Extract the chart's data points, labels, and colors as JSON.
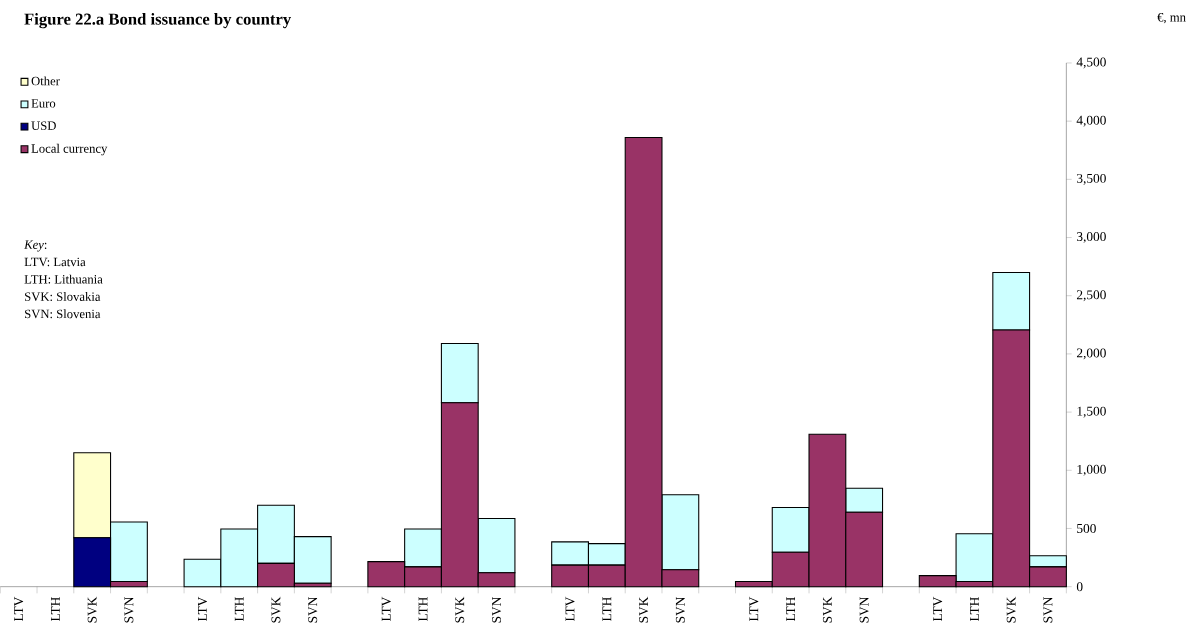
{
  "chart_data": {
    "type": "bar",
    "stacked": true,
    "title": "Figure 22.a  Bond issuance by country",
    "ylabel": "€, mn",
    "categories": [
      "LTV",
      "LTH",
      "SVK",
      "SVN",
      null,
      "LTV",
      "LTH",
      "SVK",
      "SVN",
      null,
      "LTV",
      "LTH",
      "SVK",
      "SVN",
      null,
      "LTV",
      "LTH",
      "SVK",
      "SVN",
      null,
      "LTV",
      "LTH",
      "SVK",
      "SVN",
      null,
      "LTV",
      "LTH",
      "SVK",
      "SVN"
    ],
    "series": [
      {
        "name": "Local currency",
        "color": "#993366",
        "values": [
          0,
          0,
          0,
          45,
          null,
          0,
          0,
          200,
          30,
          null,
          215,
          170,
          1580,
          120,
          null,
          185,
          185,
          3860,
          145,
          null,
          45,
          295,
          1310,
          640,
          null,
          95,
          45,
          2205,
          170
        ]
      },
      {
        "name": "USD",
        "color": "#000080",
        "values": [
          0,
          0,
          420,
          0,
          null,
          0,
          0,
          0,
          0,
          null,
          0,
          0,
          0,
          0,
          null,
          0,
          0,
          0,
          0,
          null,
          0,
          0,
          0,
          0,
          null,
          0,
          0,
          0,
          0
        ]
      },
      {
        "name": "Euro",
        "color": "#ccffff",
        "values": [
          0,
          0,
          0,
          510,
          null,
          235,
          495,
          500,
          400,
          null,
          0,
          325,
          510,
          465,
          null,
          200,
          185,
          0,
          645,
          null,
          0,
          385,
          0,
          205,
          null,
          0,
          410,
          495,
          95
        ]
      },
      {
        "name": "Other",
        "color": "#ffffcc",
        "values": [
          0,
          0,
          730,
          0,
          null,
          0,
          0,
          0,
          0,
          null,
          0,
          0,
          0,
          0,
          null,
          0,
          0,
          0,
          0,
          null,
          0,
          0,
          0,
          0,
          null,
          0,
          0,
          0,
          0
        ]
      }
    ],
    "ylim": [
      0,
      4500
    ],
    "yticks": [
      0,
      500,
      {
        "value": 1000,
        "label": "1,000"
      },
      {
        "value": 1500,
        "label": "1,500"
      },
      {
        "value": 2000,
        "label": "2,000"
      },
      {
        "value": 2500,
        "label": "2,500"
      },
      {
        "value": 3000,
        "label": "3,000"
      },
      {
        "value": 3500,
        "label": "3,500"
      },
      {
        "value": 4000,
        "label": "4,000"
      },
      {
        "value": 4500,
        "label": "4,500"
      }
    ],
    "legend": "top left",
    "annotations": [
      "*Key*:",
      "LTV: Latvia",
      "LTH: Lithuania",
      "SVK: Slovakia",
      "SVN: Slovenia"
    ]
  }
}
